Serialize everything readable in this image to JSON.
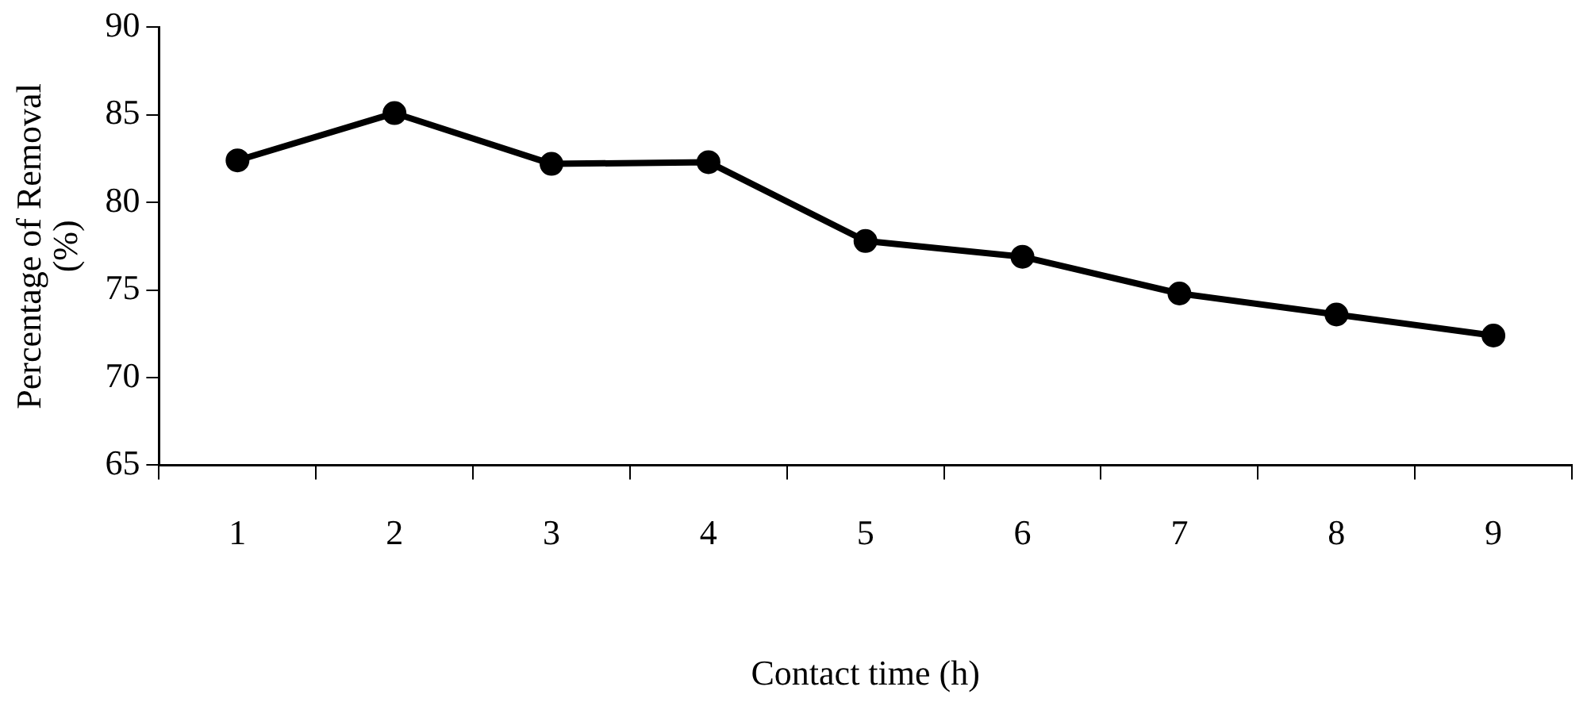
{
  "chart_data": {
    "type": "line",
    "xlabel": "Contact time (h)",
    "ylabel": "Percentage of Removal (%)",
    "categories": [
      "1",
      "2",
      "3",
      "4",
      "5",
      "6",
      "7",
      "8",
      "9"
    ],
    "series": [
      {
        "color": "#000000",
        "values": [
          82.4,
          85.1,
          82.2,
          82.3,
          77.8,
          76.9,
          74.8,
          73.6,
          72.4
        ]
      }
    ],
    "ylim": [
      65,
      90
    ],
    "yticks": [
      65,
      70,
      75,
      80,
      85,
      90
    ],
    "grid": false,
    "legend": false,
    "marker": "circle",
    "line_style": "solid"
  }
}
